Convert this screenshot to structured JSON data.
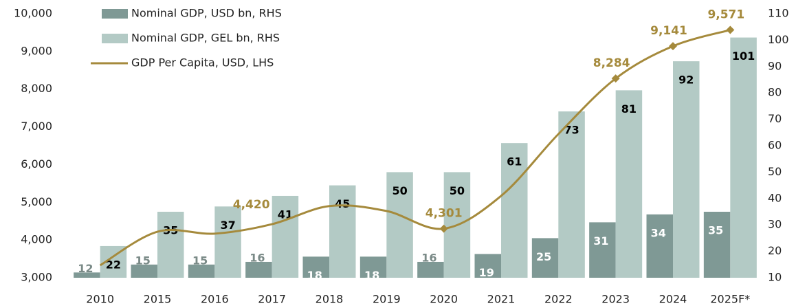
{
  "chart_data": {
    "type": "bar-line",
    "categories": [
      "2010",
      "2015",
      "2016",
      "2017",
      "2018",
      "2019",
      "2020",
      "2021",
      "2022",
      "2023",
      "2024",
      "2025F*"
    ],
    "series": [
      {
        "name": "Nominal GDP, USD bn, RHS",
        "type": "bar",
        "axis": "y2",
        "color": "#7f9995",
        "values": [
          12,
          15,
          15,
          16,
          18,
          18,
          16,
          19,
          25,
          31,
          34,
          35
        ]
      },
      {
        "name": "Nominal GDP, GEL bn, RHS",
        "type": "bar",
        "axis": "y2",
        "color": "#b3cac5",
        "values": [
          22,
          35,
          37,
          41,
          45,
          50,
          50,
          61,
          73,
          81,
          92,
          101
        ]
      },
      {
        "name": "GDP Per Capita, USD, LHS",
        "type": "line",
        "axis": "y",
        "color": "#a58a3c",
        "values": [
          3330,
          4220,
          4170,
          4420,
          4900,
          4770,
          4301,
          5170,
          6810,
          8284,
          9141,
          9571
        ],
        "value_labels": [
          null,
          null,
          null,
          "4,420",
          null,
          null,
          "4,301",
          null,
          null,
          "8,284",
          "9,141",
          "9,571"
        ]
      }
    ],
    "ylim": [
      3000,
      10000
    ],
    "yticks": [
      {
        "value": 3000,
        "label": "3,000"
      },
      {
        "value": 4000,
        "label": "4,000"
      },
      {
        "value": 5000,
        "label": "5,000"
      },
      {
        "value": 6000,
        "label": "6,000"
      },
      {
        "value": 7000,
        "label": "7,000"
      },
      {
        "value": 8000,
        "label": "8,000"
      },
      {
        "value": 9000,
        "label": "9,000"
      },
      {
        "value": 10000,
        "label": "10,000"
      }
    ],
    "y2lim": [
      10,
      110
    ],
    "y2ticks": [
      10,
      20,
      30,
      40,
      50,
      60,
      70,
      80,
      90,
      100,
      110
    ],
    "legend": "top-left"
  }
}
